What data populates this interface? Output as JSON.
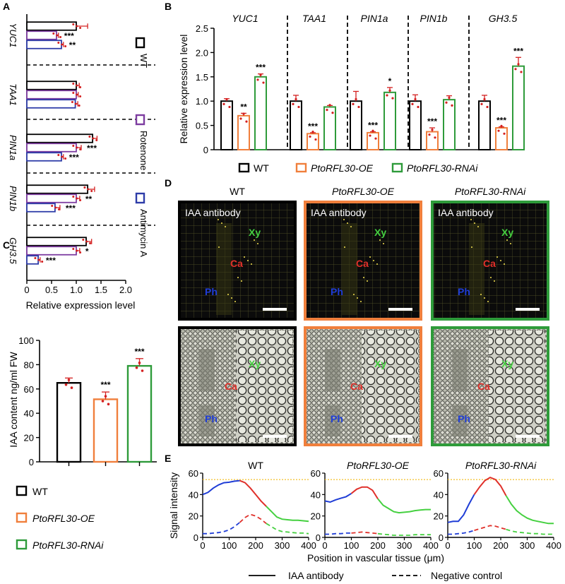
{
  "panel_labels": {
    "a": "A",
    "b": "B",
    "c": "C",
    "d": "D",
    "e": "E"
  },
  "colors": {
    "wt": "#000000",
    "oe": "#f07f3c",
    "rnai": "#2e9b3a",
    "rotenone": "#7d3ca0",
    "antimycin": "#2d3ca8",
    "dots": "#d42020",
    "ref_line": "#f3c02a",
    "blue": "#1f3dd6",
    "red": "#e0302a",
    "green": "#45d040"
  },
  "chart_data": [
    {
      "id": "A",
      "type": "bar",
      "orientation": "horizontal",
      "xlabel": "Relative expression level",
      "xlim": [
        0,
        2.0
      ],
      "xticks": [
        "0",
        "0.5",
        "1.0",
        "1.5",
        "2.0"
      ],
      "legend": [
        "WT",
        "Rotenone",
        "Antimycin A"
      ],
      "genes": [
        "YUC1",
        "TAA1",
        "PIN1a",
        "PIN1b",
        "GH3.5"
      ],
      "series": [
        {
          "name": "WT",
          "values": [
            1.0,
            1.0,
            1.33,
            1.23,
            1.2
          ],
          "errors": [
            0.23,
            0.06,
            0.09,
            0.14,
            0.11
          ]
        },
        {
          "name": "Rotenone",
          "values": [
            0.6,
            1.0,
            1.0,
            1.0,
            1.0
          ],
          "errors": [
            0.04,
            0.04,
            0.1,
            0.07,
            0.07
          ]
        },
        {
          "name": "Antimycin A",
          "values": [
            0.7,
            0.98,
            0.7,
            0.57,
            0.23
          ],
          "errors": [
            0.04,
            0.05,
            0.04,
            0.1,
            0.04
          ]
        }
      ],
      "signif": [
        [
          "",
          "***",
          "**"
        ],
        [
          "",
          "",
          ""
        ],
        [
          "",
          "***",
          "***"
        ],
        [
          "",
          "**",
          "***"
        ],
        [
          "",
          "*",
          "***"
        ]
      ]
    },
    {
      "id": "B",
      "type": "bar",
      "ylabel": "Relative expression level",
      "ylim": [
        0,
        2.5
      ],
      "yticks": [
        "0",
        "0.5",
        "1.0",
        "1.5",
        "2.0",
        "2.5"
      ],
      "genes": [
        "YUC1",
        "TAA1",
        "PIN1a",
        "PIN1b",
        "GH3.5"
      ],
      "legend": [
        "WT",
        "PtoRFL30-OE",
        "PtoRFL30-RNAi"
      ],
      "series": [
        {
          "name": "WT",
          "values": [
            1.0,
            1.0,
            1.0,
            1.0,
            1.0
          ],
          "errors": [
            0.05,
            0.12,
            0.2,
            0.13,
            0.12
          ]
        },
        {
          "name": "PtoRFL30-OE",
          "values": [
            0.7,
            0.33,
            0.35,
            0.37,
            0.45
          ],
          "errors": [
            0.05,
            0.02,
            0.02,
            0.08,
            0.02
          ]
        },
        {
          "name": "PtoRFL30-RNAi",
          "values": [
            1.5,
            0.88,
            1.18,
            1.03,
            1.72
          ],
          "errors": [
            0.06,
            0.03,
            0.1,
            0.08,
            0.18
          ]
        }
      ],
      "signif": [
        [
          "",
          "**",
          "***"
        ],
        [
          "",
          "***",
          ""
        ],
        [
          "",
          "***",
          "*"
        ],
        [
          "",
          "***",
          ""
        ],
        [
          "",
          "***",
          "***"
        ]
      ]
    },
    {
      "id": "C",
      "type": "bar",
      "ylabel": "IAA content ng/ml FW",
      "ylim": [
        0,
        100
      ],
      "yticks": [
        "0",
        "20",
        "40",
        "60",
        "80",
        "100"
      ],
      "legend": [
        "WT",
        "PtoRFL30-OE",
        "PtoRFL30-RNAi"
      ],
      "series": [
        {
          "name": "WT",
          "value": 65,
          "error": 4
        },
        {
          "name": "PtoRFL30-OE",
          "value": 51.5,
          "error": 6
        },
        {
          "name": "PtoRFL30-RNAi",
          "value": 79,
          "error": 6
        }
      ],
      "signif": [
        "",
        "***",
        "***"
      ]
    },
    {
      "id": "E",
      "type": "line",
      "ylabel": "Signal intensity",
      "xlabel": "Position in vascular tissue (μm)",
      "ylim": [
        0,
        60
      ],
      "xlim": [
        0,
        400
      ],
      "yticks": [
        "0",
        "20",
        "40",
        "60"
      ],
      "xticks": [
        "0",
        "100",
        "200",
        "300",
        "400"
      ],
      "reference": 54,
      "legend": [
        "IAA antibody",
        "Negative control"
      ],
      "panels": [
        {
          "title": "WT",
          "x": [
            0,
            20,
            40,
            60,
            80,
            100,
            120,
            140,
            160,
            180,
            200,
            220,
            240,
            260,
            280,
            300,
            320,
            340,
            360,
            380,
            400
          ],
          "iaa": [
            40,
            42,
            46,
            49,
            51,
            51.5,
            52.5,
            53,
            51,
            46,
            40,
            34,
            29,
            24,
            19,
            17,
            16.5,
            16,
            16,
            15.5,
            15
          ],
          "neg": [
            3.5,
            3.5,
            4,
            4.5,
            5.5,
            7,
            10,
            14,
            18.5,
            21.5,
            20,
            17,
            13,
            10,
            7,
            5.5,
            5,
            4.5,
            4,
            4,
            3.5
          ],
          "seg": [
            7,
            12
          ]
        },
        {
          "title": "PtoRFL30-OE",
          "x": [
            0,
            20,
            40,
            60,
            80,
            100,
            120,
            140,
            160,
            180,
            200,
            220,
            240,
            260,
            280,
            300,
            320,
            340,
            360,
            380,
            400
          ],
          "iaa": [
            34,
            33,
            35,
            36.5,
            38,
            41,
            45,
            47,
            47,
            44,
            36,
            30,
            27,
            24,
            23,
            23.5,
            24,
            25,
            25.5,
            26,
            26
          ],
          "neg": [
            3,
            3,
            3.5,
            3.5,
            4,
            4,
            4.5,
            5,
            4.5,
            4,
            3.5,
            3,
            2.5,
            2,
            2,
            2,
            2,
            2.5,
            2.5,
            2.5,
            2.5
          ],
          "seg": [
            5,
            10
          ]
        },
        {
          "title": "PtoRFL30-RNAi",
          "x": [
            0,
            20,
            40,
            60,
            80,
            100,
            120,
            140,
            160,
            180,
            200,
            220,
            240,
            260,
            280,
            300,
            320,
            340,
            360,
            380,
            400
          ],
          "iaa": [
            14,
            15,
            15,
            21,
            31,
            40,
            47,
            53,
            56,
            54,
            48,
            39,
            31,
            25,
            21,
            18,
            16,
            15,
            14,
            13,
            13
          ],
          "neg": [
            3,
            3,
            3.5,
            4,
            5,
            6.5,
            8,
            9.5,
            11,
            10.5,
            9,
            7.5,
            6,
            5,
            4.5,
            4,
            3.5,
            3.5,
            3,
            3,
            3
          ],
          "seg": [
            5,
            11
          ]
        }
      ]
    }
  ],
  "micro": {
    "columns": [
      "WT",
      "PtoRFL30-OE",
      "PtoRFL30-RNAi"
    ],
    "antibody_label": "IAA antibody",
    "tissue": {
      "xy": "Xy",
      "ca": "Ca",
      "ph": "Ph"
    }
  }
}
